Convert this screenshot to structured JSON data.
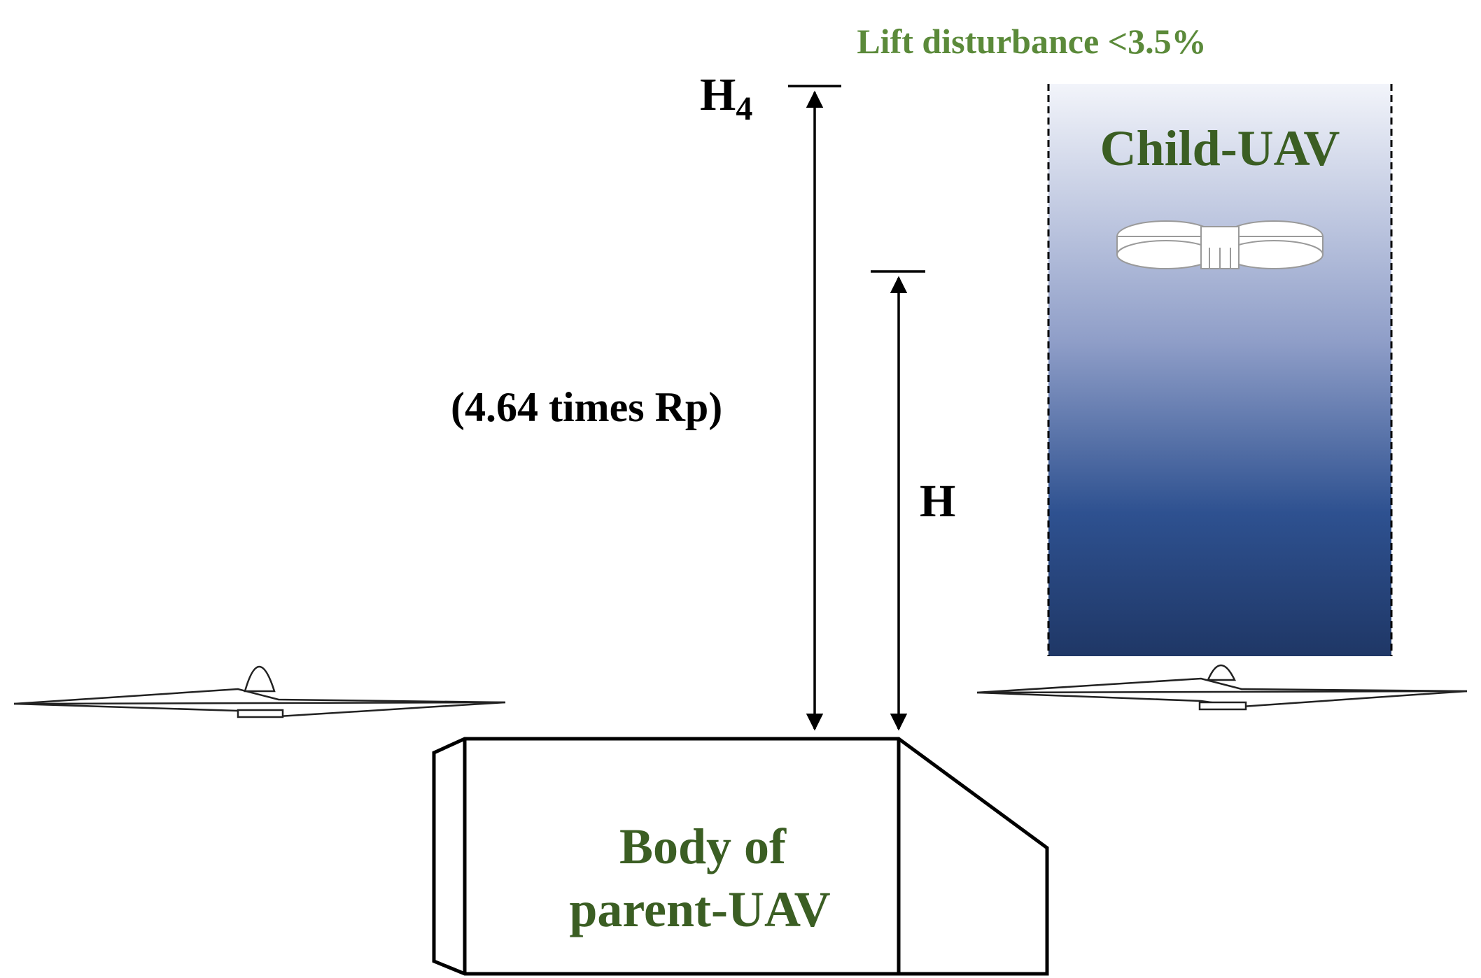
{
  "labels": {
    "lift_disturbance": "Lift disturbance <3.5%",
    "h4_main": "H",
    "h4_sub": "4",
    "times_rp": "(4.64 times Rp)",
    "h": "H",
    "child_uav": "Child-UAV",
    "body_line1": "Body of",
    "body_line2": "parent-UAV"
  },
  "colors": {
    "label_green": "#3b5e23",
    "annotation_green": "#5b8a3a",
    "gradient_top": "#f2f4fa",
    "gradient_mid": "#8f9ec8",
    "gradient_deep": "#2e5190",
    "gradient_bottom": "#1f3766",
    "line": "#000000"
  },
  "icons": {
    "left_rotor": "propeller-icon",
    "right_rotor": "propeller-icon",
    "child_uav": "quadrotor-uav-icon"
  }
}
